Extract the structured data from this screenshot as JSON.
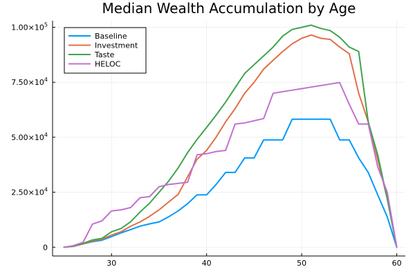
{
  "chart_data": {
    "type": "line",
    "title": "Median Wealth Accumulation by Age",
    "xlabel": "",
    "ylabel": "",
    "xlim": [
      23.8,
      60.9
    ],
    "ylim": [
      -4000,
      103000
    ],
    "grid": true,
    "legend_position": "top-left",
    "x_ticks": [
      {
        "value": 30,
        "label": "30"
      },
      {
        "value": 40,
        "label": "40"
      },
      {
        "value": 50,
        "label": "50"
      },
      {
        "value": 60,
        "label": "60"
      }
    ],
    "y_ticks": [
      {
        "value": 0,
        "mantissa": "0",
        "exponent": ""
      },
      {
        "value": 25000,
        "mantissa": "2.50×10",
        "exponent": "4"
      },
      {
        "value": 50000,
        "mantissa": "5.00×10",
        "exponent": "4"
      },
      {
        "value": 75000,
        "mantissa": "7.50×10",
        "exponent": "4"
      },
      {
        "value": 100000,
        "mantissa": "1.00×10",
        "exponent": "5"
      }
    ],
    "x": [
      25,
      26,
      27,
      28,
      29,
      30,
      31,
      32,
      33,
      34,
      35,
      36,
      37,
      38,
      39,
      40,
      41,
      42,
      43,
      44,
      45,
      46,
      47,
      48,
      49,
      50,
      51,
      52,
      53,
      54,
      55,
      56,
      57,
      58,
      59,
      60
    ],
    "series": [
      {
        "name": "Baseline",
        "color": "#009af9",
        "values": [
          0,
          500,
          1500,
          2500,
          3200,
          4800,
          6500,
          8000,
          9600,
          10600,
          11500,
          13800,
          16500,
          19800,
          23800,
          23800,
          28500,
          34000,
          34000,
          40600,
          40600,
          48800,
          48800,
          48800,
          58200,
          58200,
          58200,
          58200,
          58200,
          48800,
          48800,
          40600,
          34000,
          23800,
          13800,
          0
        ]
      },
      {
        "name": "Investment",
        "color": "#e26f46",
        "values": [
          0,
          400,
          1500,
          2800,
          3600,
          5500,
          7000,
          9500,
          11500,
          14000,
          17000,
          20500,
          24000,
          32000,
          40000,
          44000,
          50000,
          57000,
          63000,
          70000,
          75000,
          81000,
          85000,
          89000,
          92500,
          95000,
          96500,
          95000,
          94500,
          91000,
          88000,
          70000,
          57000,
          40000,
          22000,
          0
        ]
      },
      {
        "name": "Taste",
        "color": "#3da44d",
        "values": [
          0,
          400,
          1700,
          3300,
          4000,
          7000,
          8500,
          11500,
          16000,
          20000,
          25000,
          30000,
          36000,
          43000,
          49000,
          54500,
          60000,
          66000,
          72500,
          79000,
          83000,
          87000,
          91000,
          96000,
          99000,
          100000,
          101000,
          99500,
          98500,
          95500,
          91000,
          89000,
          57000,
          42000,
          22000,
          0
        ]
      },
      {
        "name": "HELOC",
        "color": "#c271d2",
        "values": [
          0,
          700,
          2200,
          10500,
          12000,
          16500,
          17000,
          18000,
          22500,
          23000,
          27500,
          28500,
          29000,
          29500,
          42000,
          42500,
          43500,
          44000,
          56000,
          56500,
          57500,
          58500,
          70000,
          70700,
          71400,
          72100,
          72800,
          73500,
          74200,
          74900,
          65000,
          56000,
          56000,
          36500,
          25000,
          0
        ]
      }
    ]
  }
}
